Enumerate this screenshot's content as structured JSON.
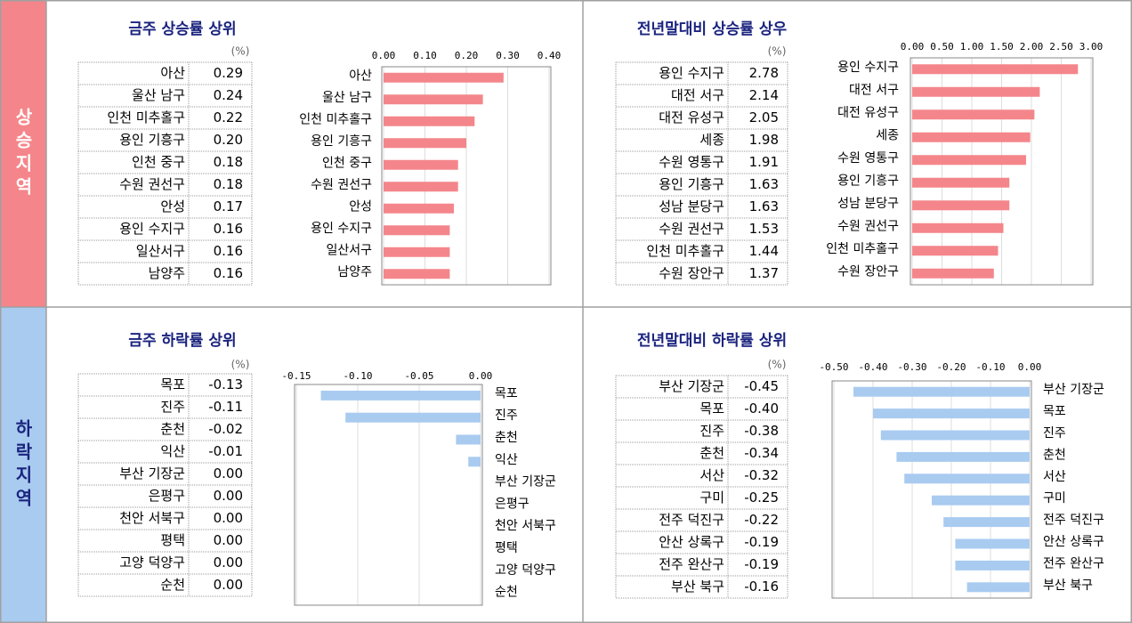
{
  "side_labels": [
    "상승지역",
    "하락지역"
  ],
  "chart_data": [
    {
      "type": "bar",
      "orientation": "horizontal",
      "title": "금주 상승률 상위",
      "unit": "(%)",
      "categories": [
        "아산",
        "울산 남구",
        "인천 미추홀구",
        "용인 기흥구",
        "인천 중구",
        "수원 권선구",
        "안성",
        "용인 수지구",
        "일산서구",
        "남양주"
      ],
      "values": [
        0.29,
        0.24,
        0.22,
        0.2,
        0.18,
        0.18,
        0.17,
        0.16,
        0.16,
        0.16
      ],
      "value_labels": [
        "0.29",
        "0.24",
        "0.22",
        "0.20",
        "0.18",
        "0.18",
        "0.17",
        "0.16",
        "0.16",
        "0.16"
      ],
      "color": "#f4868b",
      "xlim": [
        0,
        0.4
      ],
      "xticks": [
        {
          "value": 0,
          "label": "0.00"
        },
        {
          "value": 0.1,
          "label": "0.10"
        },
        {
          "value": 0.2,
          "label": "0.20"
        },
        {
          "value": 0.3,
          "label": "0.30"
        },
        {
          "value": 0.4,
          "label": "0.40"
        }
      ],
      "grid": true
    },
    {
      "type": "bar",
      "orientation": "horizontal",
      "title": "전년말대비 상승률 상우",
      "unit": "(%)",
      "categories": [
        "용인 수지구",
        "대전 서구",
        "대전 유성구",
        "세종",
        "수원 영통구",
        "용인 기흥구",
        "성남 분당구",
        "수원 권선구",
        "인천 미추홀구",
        "수원 장안구"
      ],
      "values": [
        2.78,
        2.14,
        2.05,
        1.98,
        1.91,
        1.63,
        1.63,
        1.53,
        1.44,
        1.37
      ],
      "color": "#f4868b",
      "xlim": [
        0,
        3
      ],
      "xticks": [
        {
          "value": 0,
          "label": "0.00"
        },
        {
          "value": 0.5,
          "label": "0.50"
        },
        {
          "value": 1,
          "label": "1.00"
        },
        {
          "value": 1.5,
          "label": "1.50"
        },
        {
          "value": 2,
          "label": "2.00"
        },
        {
          "value": 2.5,
          "label": "2.50"
        },
        {
          "value": 3,
          "label": "3.00"
        }
      ],
      "grid": true
    },
    {
      "type": "bar",
      "orientation": "horizontal",
      "title": "금주 하락률 상위",
      "unit": "(%)",
      "categories": [
        "목포",
        "진주",
        "춘천",
        "익산",
        "부산 기장군",
        "은평구",
        "천안 서북구",
        "평택",
        "고양 덕양구",
        "순천"
      ],
      "values": [
        -0.13,
        -0.11,
        -0.02,
        -0.01,
        0,
        0,
        0,
        0,
        0,
        0
      ],
      "value_labels": [
        "-0.13",
        "-0.11",
        "-0.02",
        "-0.01",
        "0.00",
        "0.00",
        "0.00",
        "0.00",
        "0.00",
        "0.00"
      ],
      "color": "#a9cbf0",
      "xlim": [
        -0.15,
        0
      ],
      "xticks": [
        {
          "value": -0.15,
          "label": "-0.15"
        },
        {
          "value": -0.1,
          "label": "-0.10"
        },
        {
          "value": -0.05,
          "label": "-0.05"
        },
        {
          "value": 0,
          "label": "0.00"
        }
      ],
      "grid": true
    },
    {
      "type": "bar",
      "orientation": "horizontal",
      "title": "전년말대비 하락률 상위",
      "unit": "(%)",
      "categories": [
        "부산 기장군",
        "목포",
        "진주",
        "춘천",
        "서산",
        "구미",
        "전주 덕진구",
        "안산 상록구",
        "전주 완산구",
        "부산 북구"
      ],
      "values": [
        -0.45,
        -0.4,
        -0.38,
        -0.34,
        -0.32,
        -0.25,
        -0.22,
        -0.19,
        -0.19,
        -0.16
      ],
      "value_labels": [
        "-0.45",
        "-0.40",
        "-0.38",
        "-0.34",
        "-0.32",
        "-0.25",
        "-0.22",
        "-0.19",
        "-0.19",
        "-0.16"
      ],
      "color": "#a9cbf0",
      "xlim": [
        -0.5,
        0
      ],
      "xticks": [
        {
          "value": -0.5,
          "label": "-0.50"
        },
        {
          "value": -0.4,
          "label": "-0.40"
        },
        {
          "value": -0.3,
          "label": "-0.30"
        },
        {
          "value": -0.2,
          "label": "-0.20"
        },
        {
          "value": -0.1,
          "label": "-0.10"
        },
        {
          "value": 0,
          "label": "0.00"
        }
      ],
      "grid": true
    }
  ]
}
